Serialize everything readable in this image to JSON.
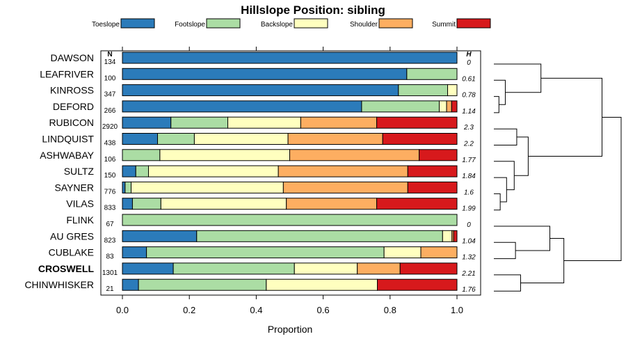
{
  "chart_data": {
    "type": "bar",
    "orientation": "horizontal",
    "stacked": true,
    "title": "Hillslope Position: sibling",
    "xlabel": "Proportion",
    "ylabel": "",
    "xlim": [
      0,
      1
    ],
    "xticks": [
      "0.0",
      "0.2",
      "0.4",
      "0.6",
      "0.8",
      "1.0"
    ],
    "legend_position": "top",
    "n_header": "N",
    "h_header": "H",
    "series": [
      {
        "name": "Toeslope",
        "color": "#2b7bba",
        "values": [
          1.0,
          0.85,
          0.825,
          0.715,
          0.145,
          0.105,
          0.0,
          0.04,
          0.008,
          0.03,
          0.0,
          0.222,
          0.072,
          0.152,
          0.048
        ]
      },
      {
        "name": "Footslope",
        "color": "#abdda4",
        "values": [
          0.0,
          0.15,
          0.147,
          0.232,
          0.17,
          0.11,
          0.112,
          0.038,
          0.018,
          0.085,
          1.0,
          0.735,
          0.71,
          0.362,
          0.382
        ]
      },
      {
        "name": "Backslope",
        "color": "#ffffbf",
        "values": [
          0.0,
          0.0,
          0.028,
          0.022,
          0.218,
          0.28,
          0.388,
          0.388,
          0.455,
          0.375,
          0.0,
          0.028,
          0.11,
          0.188,
          0.332
        ]
      },
      {
        "name": "Shoulder",
        "color": "#fdae61",
        "values": [
          0.0,
          0.0,
          0.0,
          0.015,
          0.227,
          0.283,
          0.387,
          0.387,
          0.372,
          0.27,
          0.0,
          0.005,
          0.108,
          0.128,
          0.0
        ]
      },
      {
        "name": "Summit",
        "color": "#d7191c",
        "values": [
          0.0,
          0.0,
          0.0,
          0.016,
          0.24,
          0.222,
          0.113,
          0.147,
          0.147,
          0.24,
          0.0,
          0.01,
          0.0,
          0.17,
          0.238
        ]
      }
    ],
    "categories": [
      "DAWSON",
      "LEAFRIVER",
      "KINROSS",
      "DEFORD",
      "RUBICON",
      "LINDQUIST",
      "ASHWABAY",
      "SULTZ",
      "SAYNER",
      "VILAS",
      "FLINK",
      "AU GRES",
      "CUBLAKE",
      "CROSWELL",
      "CHINWHISKER"
    ],
    "emphasized": [
      "CROSWELL"
    ],
    "N": [
      "134",
      "100",
      "347",
      "266",
      "2920",
      "438",
      "106",
      "150",
      "776",
      "833",
      "67",
      "823",
      "83",
      "1301",
      "21"
    ],
    "H": [
      "0",
      "0.61",
      "0.78",
      "1.14",
      "2.3",
      "2.2",
      "1.77",
      "1.84",
      "1.6",
      "1.99",
      "0",
      "1.04",
      "1.32",
      "2.21",
      "1.76"
    ],
    "dendrogram": {
      "merges": [
        {
          "a": "KINROSS",
          "b": "DEFORD",
          "height": 0.04
        },
        {
          "a": "LEAFRIVER",
          "b": "KINROSS+DEFORD",
          "height": 0.09
        },
        {
          "a": "DAWSON",
          "b": "LEAFRIVER+KINROSS+DEFORD",
          "height": 0.37
        },
        {
          "a": "RUBICON",
          "b": "LINDQUIST",
          "height": 0.18
        },
        {
          "a": "SAYNER",
          "b": "VILAS",
          "height": 0.05
        },
        {
          "a": "SULTZ",
          "b": "SAYNER+VILAS",
          "height": 0.1
        },
        {
          "a": "ASHWABAY",
          "b": "SULTZ+SAYNER+VILAS",
          "height": 0.16
        },
        {
          "a": "RUBICON+LINDQUIST",
          "b": "ASHWABAY+SULTZ+SAYNER+VILAS",
          "height": 0.27
        },
        {
          "a": "AU GRES",
          "b": "CUBLAKE",
          "height": 0.17
        },
        {
          "a": "FLINK",
          "b": "AU GRES+CUBLAKE",
          "height": 0.44
        },
        {
          "a": "CROSWELL",
          "b": "CHINWHISKER",
          "height": 0.21
        },
        {
          "a": "FLINK+AU GRES+CUBLAKE",
          "b": "CROSWELL+CHINWHISKER",
          "height": 0.55
        },
        {
          "a": "DAWSON+LEAFRIVER+KINROSS+DEFORD",
          "b": "RUBICON+LINDQUIST+ASHWABAY+SULTZ+SAYNER+VILAS",
          "height": 0.85
        },
        {
          "a": "TOP",
          "b": "BOTTOM",
          "height": 1.0
        }
      ]
    }
  }
}
